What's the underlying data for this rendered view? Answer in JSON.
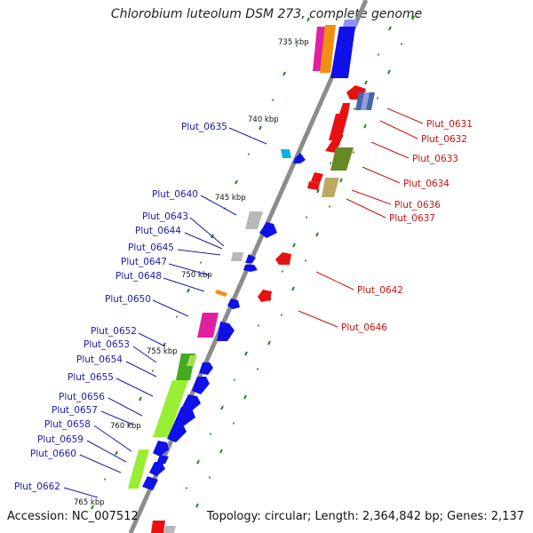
{
  "title": "Chlorobium luteolum DSM 273, complete genome",
  "footer": {
    "accession": "Accession: NC_007512",
    "summary": "Topology: circular; Length: 2,364,842 bp; Genes: 2,137"
  },
  "colors": {
    "backbone": "#8c8c8c",
    "forward_strand": "#1010e8",
    "reverse_strand": "#e81010",
    "tick": "#228822",
    "left_label": "#1a1aaa",
    "right_label": "#cc1111"
  },
  "kbp_marks": [
    "735 kbp",
    "740 kbp",
    "745 kbp",
    "750 kbp",
    "755 kbp",
    "760 kbp",
    "765 kbp"
  ],
  "left_labels": [
    "Plut_0635",
    "Plut_0640",
    "Plut_0643",
    "Plut_0644",
    "Plut_0645",
    "Plut_0647",
    "Plut_0648",
    "Plut_0650",
    "Plut_0652",
    "Plut_0653",
    "Plut_0654",
    "Plut_0655",
    "Plut_0656",
    "Plut_0657",
    "Plut_0658",
    "Plut_0659",
    "Plut_0660",
    "Plut_0662"
  ],
  "right_labels": [
    "Plut_0631",
    "Plut_0632",
    "Plut_0633",
    "Plut_0634",
    "Plut_0636",
    "Plut_0637",
    "Plut_0642",
    "Plut_0646"
  ]
}
